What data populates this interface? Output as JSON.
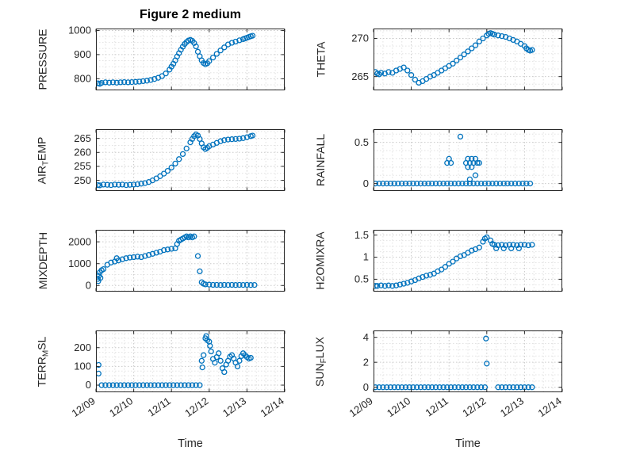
{
  "figure": {
    "title": "Figure 2 medium",
    "xlabel": "Time",
    "background": "#ffffff",
    "marker_color": "#0072BD",
    "axis_color": "#262626",
    "grid_major_color": "#c9c9c9",
    "grid_minor_color": "#e2e2e2"
  },
  "x_axis": {
    "lim": [
      0,
      5
    ],
    "ticks": [
      0,
      1,
      2,
      3,
      4,
      5
    ],
    "tick_labels": [
      "12/09",
      "12/10",
      "12/11",
      "12/12",
      "12/13",
      "12/14"
    ],
    "minor_step": 0.25
  },
  "chart_data": [
    {
      "id": "pressure",
      "type": "scatter",
      "label": {
        "pre": "PRESSURE",
        "sub": "",
        "post": ""
      },
      "ylim": [
        752,
        1008
      ],
      "yticks": [
        800,
        900,
        1000
      ],
      "ytick_labels": [
        "800",
        "900",
        "1000"
      ],
      "y_minor_step": 25,
      "x": [
        0.05,
        0.1,
        0.15,
        0.25,
        0.35,
        0.45,
        0.55,
        0.65,
        0.75,
        0.85,
        0.95,
        1.05,
        1.15,
        1.25,
        1.35,
        1.45,
        1.55,
        1.65,
        1.75,
        1.85,
        1.95,
        2.0,
        2.05,
        2.1,
        2.15,
        2.2,
        2.25,
        2.3,
        2.35,
        2.4,
        2.45,
        2.5,
        2.55,
        2.6,
        2.65,
        2.7,
        2.75,
        2.8,
        2.85,
        2.9,
        2.95,
        3.0,
        3.1,
        3.2,
        3.3,
        3.4,
        3.5,
        3.6,
        3.7,
        3.8,
        3.9,
        3.95,
        4.0,
        4.05,
        4.1,
        4.15
      ],
      "y": [
        781,
        779,
        783,
        785,
        784,
        785,
        784,
        785,
        786,
        785,
        786,
        787,
        788,
        790,
        792,
        795,
        799,
        804,
        811,
        822,
        838,
        850,
        862,
        876,
        892,
        906,
        920,
        933,
        944,
        952,
        958,
        961,
        957,
        948,
        934,
        912,
        893,
        876,
        865,
        860,
        864,
        873,
        888,
        903,
        917,
        930,
        942,
        949,
        954,
        959,
        964,
        967,
        970,
        973,
        976,
        978
      ]
    },
    {
      "id": "theta",
      "type": "scatter",
      "label": {
        "pre": "THETA",
        "sub": "",
        "post": ""
      },
      "ylim": [
        263.2,
        271.3
      ],
      "yticks": [
        265,
        270
      ],
      "ytick_labels": [
        "265",
        "270"
      ],
      "y_minor_step": 1,
      "x": [
        0.05,
        0.1,
        0.15,
        0.2,
        0.3,
        0.4,
        0.5,
        0.6,
        0.7,
        0.8,
        0.9,
        1.0,
        1.1,
        1.2,
        1.3,
        1.4,
        1.5,
        1.6,
        1.7,
        1.8,
        1.9,
        2.0,
        2.1,
        2.2,
        2.3,
        2.4,
        2.5,
        2.6,
        2.7,
        2.8,
        2.9,
        3.0,
        3.05,
        3.1,
        3.15,
        3.2,
        3.3,
        3.4,
        3.5,
        3.6,
        3.7,
        3.8,
        3.9,
        4.0,
        4.05,
        4.1,
        4.15,
        4.2
      ],
      "y": [
        265.6,
        265.4,
        265.3,
        265.5,
        265.4,
        265.6,
        265.5,
        265.8,
        266.0,
        266.2,
        265.8,
        265.2,
        264.6,
        264.2,
        264.4,
        264.7,
        265.0,
        265.2,
        265.5,
        265.8,
        266.1,
        266.4,
        266.7,
        267.1,
        267.5,
        267.9,
        268.3,
        268.7,
        269.1,
        269.6,
        270.0,
        270.4,
        270.6,
        270.7,
        270.6,
        270.5,
        270.4,
        270.3,
        270.2,
        270.0,
        269.8,
        269.6,
        269.3,
        269.0,
        268.7,
        268.5,
        268.4,
        268.5
      ]
    },
    {
      "id": "air-temp",
      "type": "scatter",
      "label": {
        "pre": "AIR",
        "sub": "T",
        "post": "EMP"
      },
      "ylim": [
        246.2,
        268.3
      ],
      "yticks": [
        250,
        255,
        260,
        265
      ],
      "ytick_labels": [
        "250",
        "255",
        "260",
        "265"
      ],
      "y_minor_step": 2.5,
      "x": [
        0.05,
        0.1,
        0.2,
        0.3,
        0.4,
        0.5,
        0.6,
        0.7,
        0.8,
        0.9,
        1.0,
        1.1,
        1.2,
        1.3,
        1.4,
        1.5,
        1.6,
        1.7,
        1.8,
        1.9,
        2.0,
        2.1,
        2.2,
        2.3,
        2.4,
        2.5,
        2.55,
        2.6,
        2.65,
        2.7,
        2.75,
        2.8,
        2.85,
        2.9,
        2.95,
        3.0,
        3.1,
        3.2,
        3.3,
        3.4,
        3.5,
        3.6,
        3.7,
        3.8,
        3.9,
        4.0,
        4.1,
        4.15
      ],
      "y": [
        248.3,
        248.2,
        248.5,
        248.4,
        248.3,
        248.5,
        248.4,
        248.5,
        248.3,
        248.4,
        248.5,
        248.6,
        248.8,
        249.0,
        249.4,
        250.0,
        250.7,
        251.5,
        252.4,
        253.4,
        254.6,
        256.0,
        257.6,
        259.4,
        261.4,
        263.6,
        264.8,
        265.8,
        266.4,
        266.0,
        264.8,
        263.2,
        261.8,
        261.2,
        261.6,
        262.2,
        262.8,
        263.4,
        264.0,
        264.4,
        264.6,
        264.7,
        264.8,
        264.9,
        265.1,
        265.4,
        265.8,
        266.0
      ]
    },
    {
      "id": "rainfall",
      "type": "scatter",
      "label": {
        "pre": "RAINFALL",
        "sub": "",
        "post": ""
      },
      "ylim": [
        -0.09,
        0.66
      ],
      "yticks": [
        0,
        0.5
      ],
      "ytick_labels": [
        "0",
        "0.5"
      ],
      "y_minor_step": 0.1,
      "x": [
        0.05,
        0.15,
        0.25,
        0.35,
        0.45,
        0.55,
        0.65,
        0.75,
        0.85,
        0.95,
        1.05,
        1.15,
        1.25,
        1.35,
        1.45,
        1.55,
        1.65,
        1.75,
        1.85,
        1.95,
        2.05,
        2.15,
        2.25,
        2.35,
        2.45,
        2.55,
        2.65,
        2.75,
        2.85,
        2.95,
        3.05,
        3.15,
        3.25,
        3.35,
        3.45,
        3.55,
        3.65,
        3.75,
        3.85,
        3.95,
        4.05,
        4.15,
        1.95,
        2.0,
        2.05,
        2.3,
        2.45,
        2.5,
        2.5,
        2.55,
        2.55,
        2.6,
        2.6,
        2.65,
        2.7,
        2.7,
        2.75,
        2.8
      ],
      "y": [
        0,
        0,
        0,
        0,
        0,
        0,
        0,
        0,
        0,
        0,
        0,
        0,
        0,
        0,
        0,
        0,
        0,
        0,
        0,
        0,
        0,
        0,
        0,
        0,
        0,
        0,
        0,
        0,
        0,
        0,
        0,
        0,
        0,
        0,
        0,
        0,
        0,
        0,
        0,
        0,
        0,
        0,
        0.25,
        0.3,
        0.25,
        0.57,
        0.25,
        0.3,
        0.2,
        0.25,
        0.05,
        0.3,
        0.2,
        0.25,
        0.3,
        0.1,
        0.25,
        0.25
      ]
    },
    {
      "id": "mixdepth",
      "type": "scatter",
      "label": {
        "pre": "MIXDEPTH",
        "sub": "",
        "post": ""
      },
      "ylim": [
        -280,
        2550
      ],
      "yticks": [
        0,
        1000,
        2000
      ],
      "ytick_labels": [
        "0",
        "1000",
        "2000"
      ],
      "y_minor_step": 250,
      "x": [
        0.05,
        0.06,
        0.08,
        0.1,
        0.12,
        0.15,
        0.2,
        0.3,
        0.4,
        0.5,
        0.55,
        0.6,
        0.7,
        0.8,
        0.9,
        1.0,
        1.1,
        1.2,
        1.3,
        1.4,
        1.5,
        1.6,
        1.7,
        1.8,
        1.9,
        2.0,
        2.1,
        2.15,
        2.2,
        2.25,
        2.3,
        2.35,
        2.4,
        2.45,
        2.5,
        2.55,
        2.6,
        2.7,
        2.75,
        2.8,
        2.85,
        2.9,
        3.0,
        3.1,
        3.2,
        3.3,
        3.4,
        3.5,
        3.6,
        3.7,
        3.8,
        3.9,
        4.0,
        4.1,
        4.2
      ],
      "y": [
        300,
        200,
        450,
        600,
        350,
        700,
        750,
        950,
        1050,
        1100,
        1250,
        1150,
        1200,
        1250,
        1280,
        1300,
        1320,
        1300,
        1350,
        1400,
        1450,
        1500,
        1550,
        1620,
        1650,
        1680,
        1700,
        1900,
        2050,
        2100,
        2150,
        2200,
        2250,
        2200,
        2250,
        2200,
        2250,
        1350,
        650,
        150,
        80,
        50,
        40,
        30,
        30,
        20,
        30,
        25,
        30,
        20,
        30,
        25,
        30,
        20,
        25
      ]
    },
    {
      "id": "h2omixra",
      "type": "scatter",
      "label": {
        "pre": "H2OMIXRA",
        "sub": "",
        "post": ""
      },
      "ylim": [
        0.22,
        1.62
      ],
      "yticks": [
        0.5,
        1,
        1.5
      ],
      "ytick_labels": [
        "0.5",
        "1",
        "1.5"
      ],
      "y_minor_step": 0.125,
      "x": [
        0.05,
        0.1,
        0.2,
        0.3,
        0.4,
        0.5,
        0.6,
        0.7,
        0.8,
        0.9,
        1.0,
        1.1,
        1.2,
        1.3,
        1.4,
        1.5,
        1.6,
        1.7,
        1.8,
        1.9,
        2.0,
        2.1,
        2.2,
        2.3,
        2.4,
        2.5,
        2.6,
        2.7,
        2.8,
        2.9,
        2.95,
        3.0,
        3.1,
        3.15,
        3.2,
        3.3,
        3.4,
        3.5,
        3.6,
        3.7,
        3.8,
        3.9,
        4.0,
        4.1,
        4.2,
        3.25,
        3.45,
        3.65,
        3.85
      ],
      "y": [
        0.35,
        0.35,
        0.36,
        0.35,
        0.36,
        0.35,
        0.36,
        0.38,
        0.4,
        0.42,
        0.45,
        0.48,
        0.52,
        0.55,
        0.58,
        0.6,
        0.63,
        0.68,
        0.72,
        0.78,
        0.85,
        0.9,
        0.97,
        1.02,
        1.05,
        1.1,
        1.15,
        1.18,
        1.22,
        1.35,
        1.42,
        1.45,
        1.38,
        1.3,
        1.28,
        1.27,
        1.28,
        1.27,
        1.28,
        1.28,
        1.27,
        1.28,
        1.28,
        1.27,
        1.28,
        1.2,
        1.2,
        1.2,
        1.2
      ]
    },
    {
      "id": "terr-msl",
      "type": "scatter",
      "label": {
        "pre": "TERR",
        "sub": "M",
        "post": "SL"
      },
      "ylim": [
        -38,
        292
      ],
      "yticks": [
        0,
        100,
        200
      ],
      "ytick_labels": [
        "0",
        "100",
        "200"
      ],
      "y_minor_step": 25,
      "x": [
        0.07,
        0.07,
        0.15,
        0.25,
        0.35,
        0.45,
        0.55,
        0.65,
        0.75,
        0.85,
        0.95,
        1.05,
        1.15,
        1.25,
        1.35,
        1.45,
        1.55,
        1.65,
        1.75,
        1.85,
        1.95,
        2.05,
        2.15,
        2.25,
        2.35,
        2.45,
        2.55,
        2.65,
        2.75,
        2.8,
        2.82,
        2.85,
        2.9,
        2.92,
        2.95,
        3.0,
        3.02,
        3.05,
        3.1,
        3.15,
        3.2,
        3.25,
        3.3,
        3.35,
        3.4,
        3.45,
        3.5,
        3.55,
        3.6,
        3.65,
        3.7,
        3.75,
        3.8,
        3.85,
        3.9,
        3.95,
        4.0,
        4.05,
        4.1
      ],
      "y": [
        62,
        108,
        0,
        0,
        0,
        0,
        0,
        0,
        0,
        0,
        0,
        0,
        0,
        0,
        0,
        0,
        0,
        0,
        0,
        0,
        0,
        0,
        0,
        0,
        0,
        0,
        0,
        0,
        0,
        130,
        95,
        160,
        250,
        262,
        240,
        232,
        210,
        180,
        140,
        120,
        150,
        170,
        130,
        90,
        70,
        110,
        130,
        152,
        160,
        142,
        120,
        100,
        130,
        155,
        170,
        160,
        150,
        142,
        146
      ]
    },
    {
      "id": "sun-flux",
      "type": "scatter",
      "label": {
        "pre": "SUN",
        "sub": "F",
        "post": "LUX"
      },
      "ylim": [
        -0.4,
        4.55
      ],
      "yticks": [
        0,
        2,
        4
      ],
      "ytick_labels": [
        "0",
        "2",
        "4"
      ],
      "y_minor_step": 0.5,
      "x": [
        0.05,
        0.15,
        0.25,
        0.35,
        0.45,
        0.55,
        0.65,
        0.75,
        0.85,
        0.95,
        1.05,
        1.15,
        1.25,
        1.35,
        1.45,
        1.55,
        1.65,
        1.75,
        1.85,
        1.95,
        2.05,
        2.15,
        2.25,
        2.35,
        2.45,
        2.55,
        2.65,
        2.75,
        2.85,
        2.95,
        2.98,
        3.0,
        3.3,
        3.4,
        3.5,
        3.6,
        3.7,
        3.8,
        3.9,
        4.0,
        4.1,
        4.2
      ],
      "y": [
        0,
        0,
        0,
        0,
        0,
        0,
        0,
        0,
        0,
        0,
        0,
        0,
        0,
        0,
        0,
        0,
        0,
        0,
        0,
        0,
        0,
        0,
        0,
        0,
        0,
        0,
        0,
        0,
        0,
        0,
        3.9,
        1.9,
        0,
        0,
        0,
        0,
        0,
        0,
        0,
        0,
        0,
        0
      ]
    }
  ]
}
